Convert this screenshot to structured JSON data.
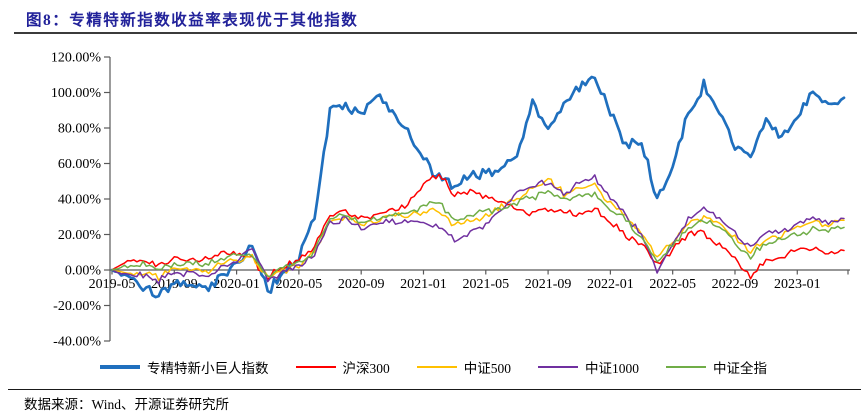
{
  "figure": {
    "title_prefix": "图8：",
    "title": "专精特新指数收益率表现优于其他指数"
  },
  "source": {
    "label": "数据来源：",
    "text": "Wind、开源证券研究所"
  },
  "colors": {
    "title": "#22229A",
    "title_rule": "#3B3B3B",
    "axis": "#595959",
    "text": "#000000",
    "background": "#FFFFFF"
  },
  "chart_data": {
    "type": "line",
    "title": "",
    "xlabel": "",
    "ylabel": "",
    "grid": false,
    "legend_position": "bottom",
    "ylim": [
      -40,
      120
    ],
    "y_tick_values": [
      120,
      100,
      80,
      60,
      40,
      20,
      0,
      -20,
      -40
    ],
    "y_tick_labels": [
      "120.00%",
      "100.00%",
      "80.00%",
      "60.00%",
      "40.00%",
      "20.00%",
      "0.00%",
      "-20.00%",
      "-40.00%"
    ],
    "x_tick_labels": [
      "2019-05",
      "2019-09",
      "2020-01",
      "2020-05",
      "2020-09",
      "2021-01",
      "2021-05",
      "2021-09",
      "2022-01",
      "2022-05",
      "2022-09",
      "2023-01"
    ],
    "x_tick_every": 4,
    "x": [
      "2019-05",
      "2019-06",
      "2019-07",
      "2019-08",
      "2019-09",
      "2019-10",
      "2019-11",
      "2019-12",
      "2020-01",
      "2020-02",
      "2020-03",
      "2020-04",
      "2020-05",
      "2020-06",
      "2020-07",
      "2020-08",
      "2020-09",
      "2020-10",
      "2020-11",
      "2020-12",
      "2021-01",
      "2021-02",
      "2021-03",
      "2021-04",
      "2021-05",
      "2021-06",
      "2021-07",
      "2021-08",
      "2021-09",
      "2021-10",
      "2021-11",
      "2021-12",
      "2022-01",
      "2022-02",
      "2022-03",
      "2022-04",
      "2022-05",
      "2022-06",
      "2022-07",
      "2022-08",
      "2022-09",
      "2022-10",
      "2022-11",
      "2022-12",
      "2023-01",
      "2023-02",
      "2023-03",
      "2023-04"
    ],
    "unit": "percent",
    "series": [
      {
        "name": "专精特新小巨人指数",
        "color": "#1F6FBE",
        "line_width": 2.7,
        "values": [
          0,
          -4,
          -9,
          -14,
          -7,
          -9,
          -11,
          -4,
          4,
          15,
          -12,
          -2,
          8,
          30,
          90,
          92,
          88,
          100,
          88,
          78,
          62,
          52,
          48,
          52,
          55,
          58,
          66,
          95,
          80,
          94,
          102,
          109,
          88,
          70,
          72,
          40,
          58,
          88,
          105,
          88,
          70,
          63,
          87,
          74,
          86,
          101,
          93,
          97
        ]
      },
      {
        "name": "沪深300",
        "color": "#FE0000",
        "line_width": 1.5,
        "values": [
          0,
          5,
          6,
          2,
          7,
          5,
          6,
          9,
          10,
          6,
          -4,
          2,
          6,
          13,
          30,
          33,
          29,
          31,
          34,
          38,
          48,
          55,
          42,
          45,
          42,
          39,
          34,
          32,
          35,
          33,
          32,
          34,
          28,
          19,
          14,
          3,
          12,
          20,
          21,
          15,
          7,
          -4,
          5,
          7,
          12,
          13,
          9,
          11
        ]
      },
      {
        "name": "中证500",
        "color": "#FFC000",
        "line_width": 1.5,
        "values": [
          0,
          -2,
          -1,
          -4,
          1,
          0,
          -1,
          3,
          6,
          8,
          -4,
          0,
          3,
          10,
          28,
          30,
          26,
          28,
          30,
          31,
          32,
          33,
          25,
          28,
          31,
          36,
          41,
          46,
          52,
          43,
          46,
          48,
          38,
          30,
          21,
          6,
          16,
          26,
          29,
          26,
          18,
          10,
          18,
          20,
          24,
          27,
          25,
          28
        ]
      },
      {
        "name": "中证1000",
        "color": "#7030A0",
        "line_width": 1.5,
        "values": [
          0,
          -3,
          -3,
          -6,
          -1,
          -2,
          -4,
          1,
          5,
          12,
          -5,
          -1,
          2,
          9,
          27,
          29,
          24,
          26,
          28,
          28,
          27,
          25,
          16,
          20,
          26,
          34,
          42,
          47,
          49,
          43,
          49,
          52,
          40,
          31,
          20,
          -2,
          15,
          29,
          35,
          30,
          20,
          12,
          21,
          22,
          26,
          29,
          27,
          29
        ]
      },
      {
        "name": "中证全指",
        "color": "#70AD47",
        "line_width": 1.5,
        "values": [
          0,
          2,
          3,
          0,
          4,
          3,
          3,
          6,
          8,
          7,
          -4,
          1,
          4,
          11,
          29,
          31,
          27,
          29,
          31,
          33,
          36,
          38,
          28,
          31,
          33,
          35,
          38,
          41,
          44,
          39,
          41,
          43,
          35,
          28,
          19,
          4,
          14,
          24,
          28,
          24,
          16,
          8,
          15,
          17,
          20,
          23,
          22,
          24
        ]
      }
    ]
  }
}
